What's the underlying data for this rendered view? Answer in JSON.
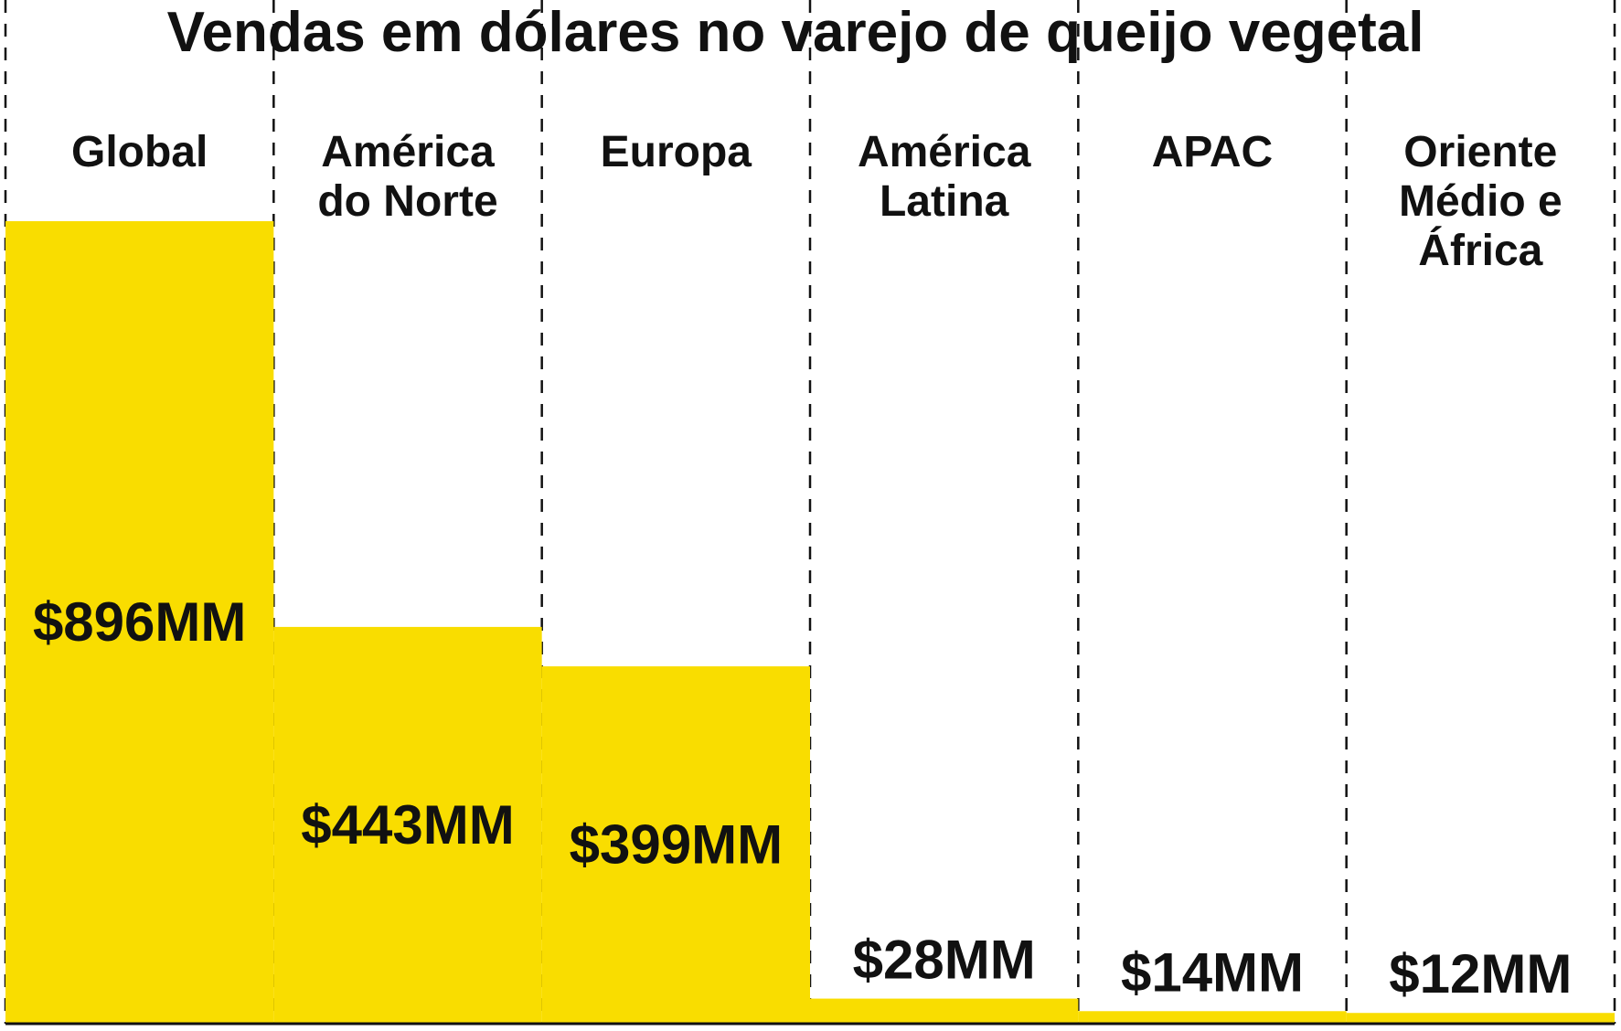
{
  "chart_data": {
    "type": "bar",
    "title": "Vendas em dólares no varejo de queijo vegetal",
    "xlabel": "",
    "ylabel": "",
    "categories": [
      "Global",
      "América do Norte",
      "Europa",
      "América Latina",
      "APAC",
      "Oriente Médio e África"
    ],
    "category_label_lines": [
      [
        "Global"
      ],
      [
        "América",
        "do Norte"
      ],
      [
        "Europa"
      ],
      [
        "América",
        "Latina"
      ],
      [
        "APAC"
      ],
      [
        "Oriente",
        "Médio e",
        "África"
      ]
    ],
    "values": [
      896,
      443,
      399,
      28,
      14,
      12
    ],
    "value_labels": [
      "$896MM",
      "$443MM",
      "$399MM",
      "$28MM",
      "$14MM",
      "$12MM"
    ],
    "unit": "MM",
    "ylim": [
      0,
      896
    ],
    "grid": false,
    "legend": "none",
    "colors": {
      "bar": "#F9DD00",
      "text": "#111111",
      "divider": "#111111",
      "baseline": "#111111",
      "background": "#FFFFFF"
    }
  }
}
